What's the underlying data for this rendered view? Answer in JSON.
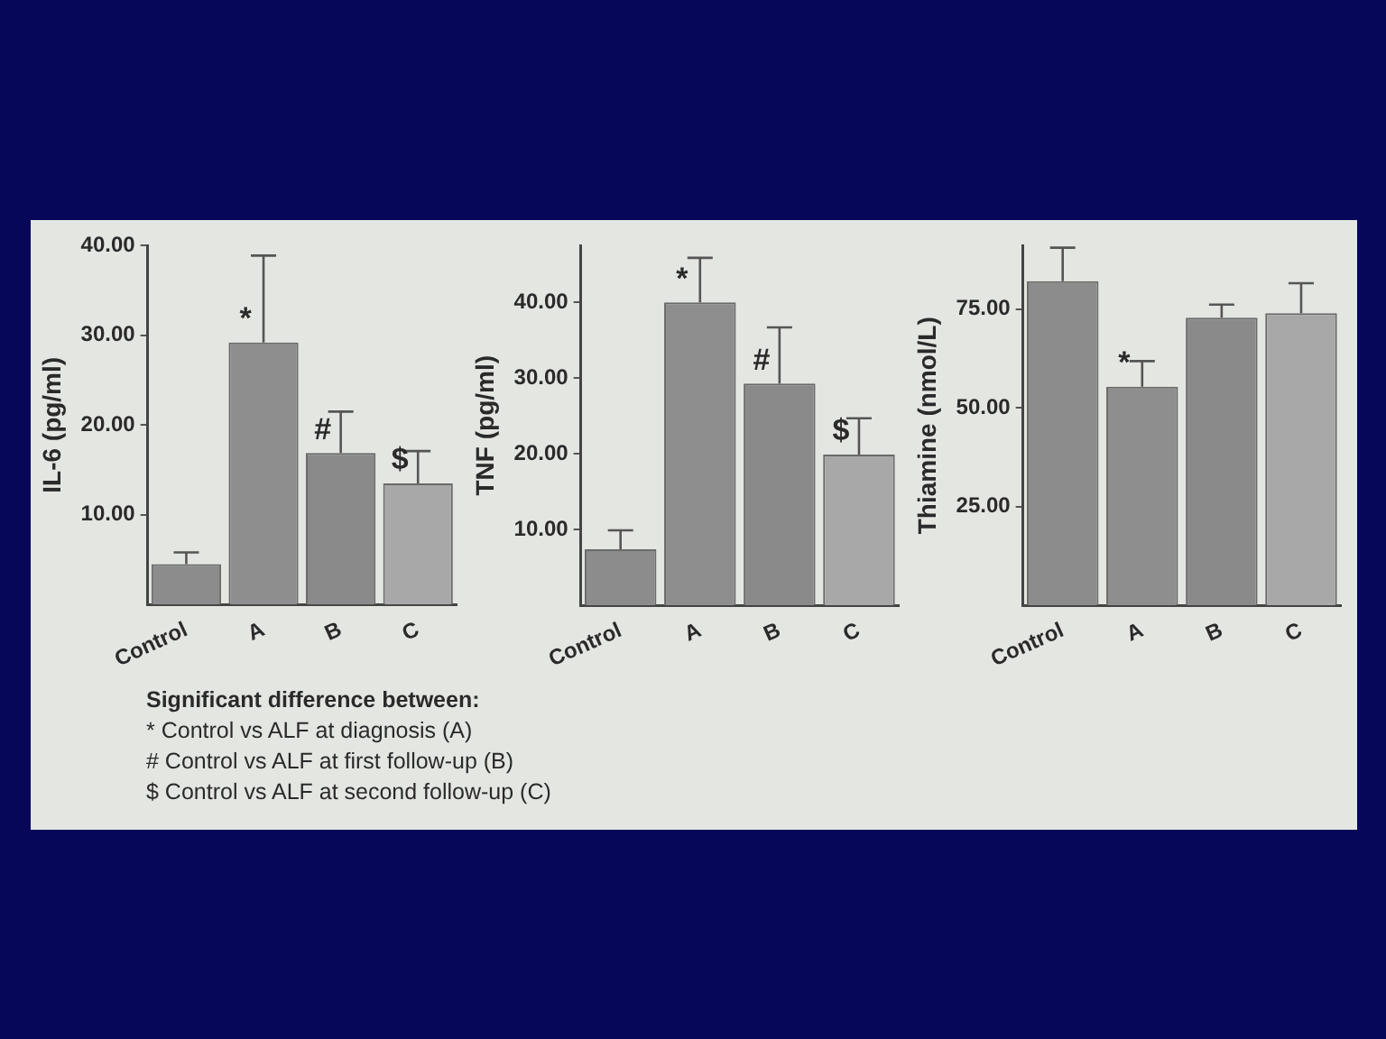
{
  "chart_data": [
    {
      "type": "bar",
      "ylabel": "IL-6 (pg/ml)",
      "categories": [
        "Control",
        "A",
        "B",
        "C"
      ],
      "values": [
        4.5,
        29.2,
        16.9,
        13.5
      ],
      "colors": [
        "#8c8c8c",
        "#8e8e8e",
        "#8a8a8a",
        "#a8a8a8"
      ],
      "errors": [
        [
          4.5,
          5.8
        ],
        [
          29.2,
          38.9
        ],
        [
          16.9,
          21.5
        ],
        [
          13.5,
          17.1
        ]
      ],
      "ylim": [
        0,
        40
      ],
      "yticks": [
        {
          "value": 10,
          "label": "10.00"
        },
        {
          "value": 20,
          "label": "20.00"
        },
        {
          "value": 30,
          "label": "30.00"
        },
        {
          "value": 40,
          "label": "40.00"
        }
      ],
      "grid": false,
      "legend": false,
      "annotations": [
        {
          "text": "*",
          "x": "A",
          "y": 29.2
        },
        {
          "text": "#",
          "x": "B",
          "y": 16.9
        },
        {
          "text": "$",
          "x": "C",
          "y": 13.5
        },
        "Significant difference between:",
        "* Control vs ALF at diagnosis (A)",
        "# Control vs ALF at first follow-up (B)",
        "$ Control vs ALF at second follow-up (C)"
      ]
    },
    {
      "type": "bar",
      "ylabel": "TNF (pg/ml)",
      "categories": [
        "Control",
        "A",
        "B",
        "C"
      ],
      "values": [
        7.4,
        40.0,
        29.3,
        19.9
      ],
      "colors": [
        "#8c8c8c",
        "#8e8e8e",
        "#8a8a8a",
        "#a8a8a8"
      ],
      "errors": [
        [
          7.4,
          9.9
        ],
        [
          40.0,
          45.9
        ],
        [
          29.3,
          36.7
        ],
        [
          19.9,
          24.7
        ]
      ],
      "ylim": [
        0,
        47.5
      ],
      "yticks": [
        {
          "value": 10,
          "label": "10.00"
        },
        {
          "value": 20,
          "label": "20.00"
        },
        {
          "value": 30,
          "label": "30.00"
        },
        {
          "value": 40,
          "label": "40.00"
        }
      ],
      "grid": false,
      "legend": false,
      "annotations": [
        {
          "text": "*",
          "x": "A",
          "y": 40.0
        },
        {
          "text": "#",
          "x": "B",
          "y": 29.3
        },
        {
          "text": "$",
          "x": "C",
          "y": 19.9
        }
      ]
    },
    {
      "type": "bar",
      "ylabel": "Thiamine (nmol/L)",
      "categories": [
        "Control",
        "A",
        "B",
        "C"
      ],
      "values": [
        82.0,
        55.3,
        72.8,
        73.9
      ],
      "colors": [
        "#8c8c8c",
        "#8e8e8e",
        "#8a8a8a",
        "#a8a8a8"
      ],
      "errors": [
        [
          82.0,
          90.5
        ],
        [
          55.3,
          61.8
        ],
        [
          72.8,
          76.1
        ],
        [
          73.9,
          81.5
        ]
      ],
      "ylim": [
        0,
        91
      ],
      "yticks": [
        {
          "value": 25,
          "label": "25.00"
        },
        {
          "value": 50,
          "label": "50.00"
        },
        {
          "value": 75,
          "label": "75.00"
        }
      ],
      "grid": false,
      "legend": false,
      "annotations": [
        {
          "text": "*",
          "x": "A",
          "y": 55.3
        }
      ]
    }
  ]
}
